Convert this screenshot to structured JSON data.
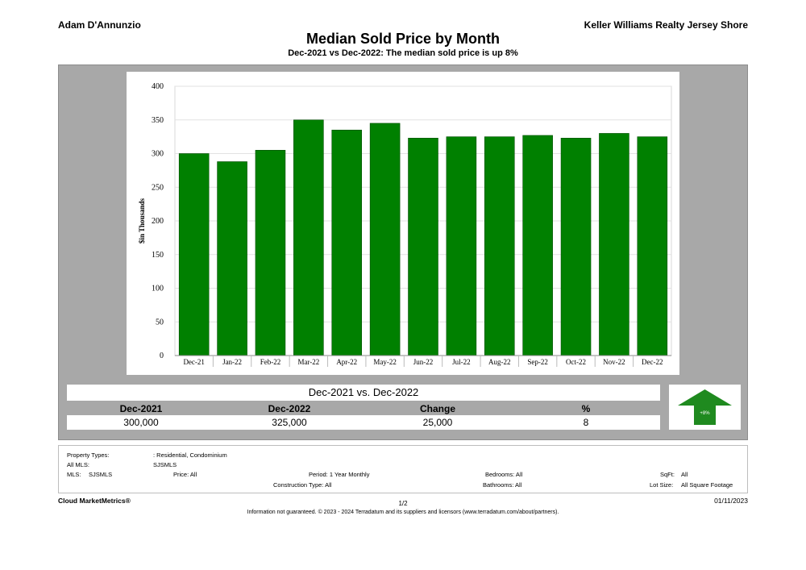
{
  "header": {
    "agent": "Adam D'Annunzio",
    "brokerage": "Keller Williams Realty Jersey Shore"
  },
  "chart_data": {
    "type": "bar",
    "title": "Median Sold Price by Month",
    "subtitle": "Dec-2021 vs Dec-2022: The median sold price is up 8%",
    "ylabel": "$in Thousands",
    "xlabel": "",
    "ylim": [
      0,
      400
    ],
    "yticks": [
      0,
      50,
      100,
      150,
      200,
      250,
      300,
      350,
      400
    ],
    "grid": true,
    "categories": [
      "Dec-21",
      "Jan-22",
      "Feb-22",
      "Mar-22",
      "Apr-22",
      "May-22",
      "Jun-22",
      "Jul-22",
      "Aug-22",
      "Sep-22",
      "Oct-22",
      "Nov-22",
      "Dec-22"
    ],
    "values": [
      300,
      288,
      305,
      350,
      335,
      345,
      323,
      325,
      325,
      327,
      323,
      330,
      325
    ],
    "bar_color": "#008000"
  },
  "summary": {
    "heading": "Dec-2021 vs. Dec-2022",
    "columns": [
      "Dec-2021",
      "Dec-2022",
      "Change",
      "%"
    ],
    "values": [
      "300,000",
      "325,000",
      "25,000",
      "8"
    ],
    "badge": "+8%",
    "arrow_color": "#1f8a1f"
  },
  "criteria": {
    "property_types_label": "Property Types:",
    "property_types_value": ": Residential, Condominium",
    "all_mls_label": "All MLS:",
    "all_mls_value": "SJSMLS",
    "mls_label": "MLS:",
    "mls_value": "SJSMLS",
    "price": "Price: All",
    "period": "Period: 1 Year Monthly",
    "construction": "Construction Type: All",
    "bedrooms": "Bedrooms: All",
    "bathrooms": "Bathrooms: All",
    "sqft_label": "SqFt:",
    "sqft_value": "All",
    "lotsize_label": "Lot Size:",
    "lotsize_value": "All Square Footage"
  },
  "footer": {
    "brand": "Cloud MarketMetrics®",
    "page": "1/2",
    "date": "01/11/2023",
    "disclaimer": "Information not guaranteed. © 2023 - 2024 Terradatum and its suppliers and licensors (www.terradatum.com/about/partners)."
  }
}
